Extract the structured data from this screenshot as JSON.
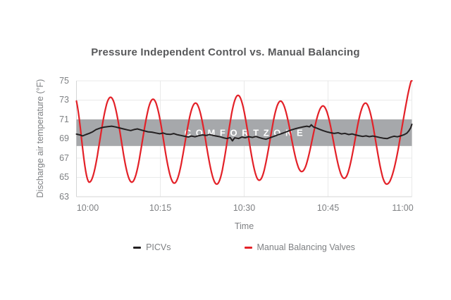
{
  "colors": {
    "background": "#ffffff",
    "title_text": "#58595b",
    "axis_text": "#7e8083",
    "gridline": "#e9eaea",
    "axis_line": "#d4d5d6",
    "picvs_line": "#232021",
    "manual_valves_line": "#e32128",
    "comfort_zone_fill": "#a6a8ab",
    "comfort_zone_text": "#ffffff"
  },
  "chart_data": {
    "type": "line",
    "title": "Pressure Independent Control vs. Manual Balancing",
    "xlabel": "Time",
    "ylabel": "Discharge air temperature (°F)",
    "x_tick_labels": [
      "10:00",
      "10:15",
      "10:30",
      "10:45",
      "11:00"
    ],
    "x_tick_minutes": [
      0,
      15,
      30,
      45,
      60
    ],
    "x_range_minutes": [
      0,
      60
    ],
    "y_ticks": [
      75,
      73,
      71,
      69,
      67,
      65,
      63
    ],
    "y_range": [
      63,
      75
    ],
    "grid": true,
    "legend_position": "bottom",
    "comfort_zone": {
      "label": "COMFORT ZONE",
      "from_f": 68.25,
      "to_f": 71.0,
      "fill": "#a6a8ab",
      "text_color": "#ffffff"
    },
    "series": [
      {
        "name": "PICVs",
        "color": "#232021",
        "width": 2,
        "style": "jagged-steady-near-69.5F",
        "points": [
          [
            0,
            69.48
          ],
          [
            0.6,
            69.4
          ],
          [
            1.1,
            69.3
          ],
          [
            1.7,
            69.44
          ],
          [
            2.3,
            69.56
          ],
          [
            2.9,
            69.72
          ],
          [
            3.5,
            69.95
          ],
          [
            4.2,
            70.1
          ],
          [
            4.9,
            70.2
          ],
          [
            5.6,
            70.26
          ],
          [
            6.3,
            70.3
          ],
          [
            7.0,
            70.22
          ],
          [
            7.7,
            70.12
          ],
          [
            8.4,
            70.02
          ],
          [
            9.1,
            69.92
          ],
          [
            9.7,
            69.85
          ],
          [
            10.3,
            69.95
          ],
          [
            10.9,
            70.02
          ],
          [
            11.5,
            69.92
          ],
          [
            12.1,
            69.82
          ],
          [
            12.8,
            69.72
          ],
          [
            13.5,
            69.68
          ],
          [
            14.2,
            69.6
          ],
          [
            14.9,
            69.52
          ],
          [
            15.5,
            69.6
          ],
          [
            16.1,
            69.48
          ],
          [
            16.8,
            69.45
          ],
          [
            17.4,
            69.54
          ],
          [
            18.0,
            69.42
          ],
          [
            18.7,
            69.34
          ],
          [
            19.3,
            69.26
          ],
          [
            20.0,
            69.18
          ],
          [
            20.6,
            69.28
          ],
          [
            21.2,
            69.2
          ],
          [
            21.9,
            69.32
          ],
          [
            22.5,
            69.4
          ],
          [
            23.2,
            69.34
          ],
          [
            23.8,
            69.44
          ],
          [
            24.4,
            69.35
          ],
          [
            25.0,
            69.28
          ],
          [
            25.7,
            69.2
          ],
          [
            26.3,
            69.1
          ],
          [
            26.9,
            69.02
          ],
          [
            27.5,
            69.12
          ],
          [
            27.9,
            68.78
          ],
          [
            28.3,
            69.1
          ],
          [
            29.0,
            69.02
          ],
          [
            29.6,
            69.18
          ],
          [
            30.2,
            69.1
          ],
          [
            30.8,
            69.22
          ],
          [
            31.5,
            69.14
          ],
          [
            32.1,
            69.24
          ],
          [
            32.7,
            69.12
          ],
          [
            33.3,
            69.02
          ],
          [
            33.9,
            68.95
          ],
          [
            34.5,
            69.08
          ],
          [
            35.1,
            69.2
          ],
          [
            35.8,
            69.35
          ],
          [
            36.4,
            69.48
          ],
          [
            37.1,
            69.62
          ],
          [
            37.8,
            69.78
          ],
          [
            38.5,
            69.92
          ],
          [
            39.2,
            70.05
          ],
          [
            39.9,
            70.15
          ],
          [
            40.6,
            70.24
          ],
          [
            41.2,
            70.3
          ],
          [
            41.7,
            70.24
          ],
          [
            42.0,
            70.45
          ],
          [
            42.4,
            70.22
          ],
          [
            43.0,
            70.1
          ],
          [
            43.6,
            69.95
          ],
          [
            44.2,
            69.82
          ],
          [
            44.9,
            69.7
          ],
          [
            45.5,
            69.62
          ],
          [
            46.1,
            69.55
          ],
          [
            46.8,
            69.62
          ],
          [
            47.4,
            69.5
          ],
          [
            48.0,
            69.56
          ],
          [
            48.7,
            69.44
          ],
          [
            49.3,
            69.5
          ],
          [
            49.9,
            69.4
          ],
          [
            50.5,
            69.32
          ],
          [
            51.2,
            69.24
          ],
          [
            51.8,
            69.3
          ],
          [
            52.4,
            69.22
          ],
          [
            53.0,
            69.28
          ],
          [
            53.7,
            69.2
          ],
          [
            54.3,
            69.12
          ],
          [
            54.9,
            69.06
          ],
          [
            55.6,
            69.02
          ],
          [
            56.2,
            69.16
          ],
          [
            56.8,
            69.26
          ],
          [
            57.4,
            69.2
          ],
          [
            58.0,
            69.3
          ],
          [
            58.6,
            69.42
          ],
          [
            59.1,
            69.58
          ],
          [
            59.5,
            69.85
          ],
          [
            59.8,
            70.15
          ],
          [
            60,
            70.5
          ]
        ]
      },
      {
        "name": "Manual Balancing Valves",
        "color": "#e32128",
        "width": 2.2,
        "style": "oscillating-sine-approx-7.6min-period",
        "interpolation": "cosine-through-extrema",
        "note": "first and last extrema lie just outside the visible 10:00-11:00 window; curve enters at ~73.3F falling and exits at 75F rising",
        "extrema": [
          [
            -0.5,
            73.6
          ],
          [
            2.3,
            64.5
          ],
          [
            6.1,
            73.3
          ],
          [
            9.9,
            64.5
          ],
          [
            13.7,
            73.1
          ],
          [
            17.5,
            64.4
          ],
          [
            21.3,
            72.7
          ],
          [
            25.1,
            64.3
          ],
          [
            28.9,
            73.5
          ],
          [
            32.7,
            64.7
          ],
          [
            36.5,
            72.9
          ],
          [
            40.3,
            65.6
          ],
          [
            44.1,
            72.4
          ],
          [
            47.9,
            64.9
          ],
          [
            51.7,
            72.7
          ],
          [
            55.5,
            64.3
          ],
          [
            61.0,
            76.2
          ]
        ]
      }
    ]
  }
}
